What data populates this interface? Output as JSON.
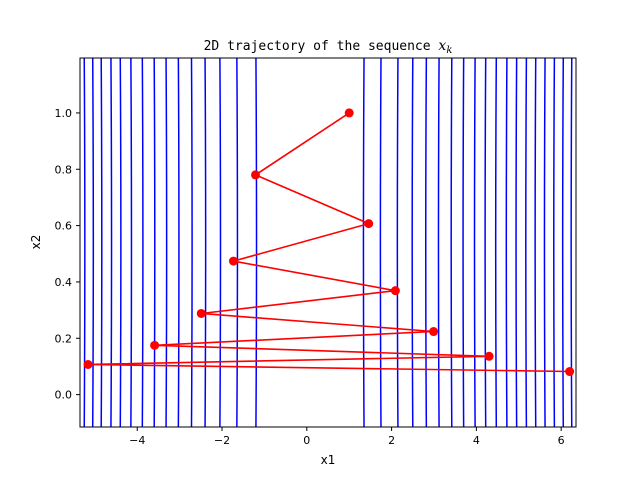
{
  "chart_data": {
    "type": "scatter",
    "title_prefix": "2D trajectory of the sequence ",
    "title_var": "x",
    "title_sub": "k",
    "xlabel": "x1",
    "ylabel": "x2",
    "xlim": [
      -5.35,
      6.35
    ],
    "ylim": [
      -0.115,
      1.195
    ],
    "xticks": [
      -4,
      -2,
      0,
      2,
      4,
      6
    ],
    "xtick_labels": [
      "−4",
      "−2",
      "0",
      "2",
      "4",
      "6"
    ],
    "yticks": [
      0.0,
      0.2,
      0.4,
      0.6,
      0.8,
      1.0
    ],
    "ytick_labels": [
      "0.0",
      "0.2",
      "0.4",
      "0.6",
      "0.8",
      "1.0"
    ],
    "grid": false,
    "contour_color": "#0000ff",
    "trajectory_color": "#ff0000",
    "contour_x_positions": [
      -5.25,
      -5.05,
      -4.85,
      -4.62,
      -4.4,
      -4.15,
      -3.88,
      -3.6,
      -3.32,
      -3.03,
      -2.72,
      -2.4,
      -2.05,
      -1.65,
      -1.2,
      1.35,
      1.75,
      2.15,
      2.5,
      2.82,
      3.12,
      3.42,
      3.7,
      3.97,
      4.22,
      4.47,
      4.72,
      4.95,
      5.18,
      5.4,
      5.62,
      5.84,
      6.05,
      6.25
    ],
    "trajectory": {
      "x": [
        1.0,
        -1.21,
        1.46,
        -1.73,
        2.09,
        -2.49,
        2.99,
        -3.59,
        4.3,
        -5.16,
        6.2
      ],
      "y": [
        1.0,
        0.78,
        0.607,
        0.474,
        0.369,
        0.288,
        0.224,
        0.175,
        0.136,
        0.107,
        0.082
      ]
    }
  }
}
